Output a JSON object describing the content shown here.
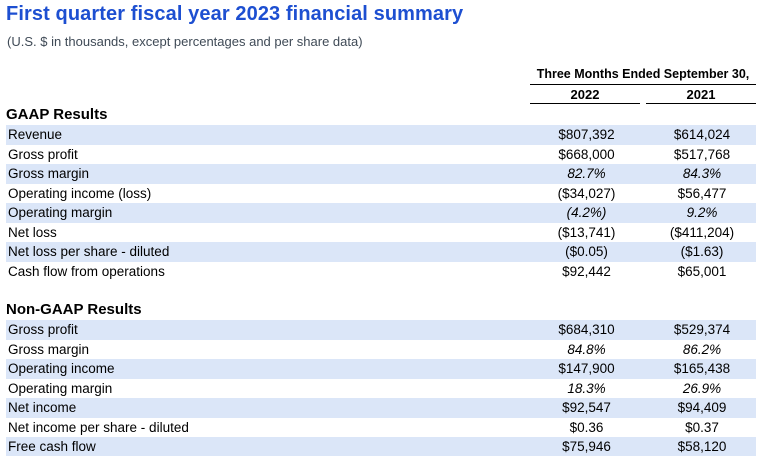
{
  "page": {
    "title": "First quarter fiscal year 2023 financial summary",
    "subtitle": "(U.S. $ in thousands, except percentages and per share data)"
  },
  "table": {
    "period_header": "Three Months Ended September 30,",
    "columns": [
      "2022",
      "2021"
    ],
    "sections": [
      {
        "heading": "GAAP Results",
        "rows": [
          {
            "label": "Revenue",
            "v2022": "$807,392",
            "v2021": "$614,024",
            "italic": false
          },
          {
            "label": "Gross profit",
            "v2022": "$668,000",
            "v2021": "$517,768",
            "italic": false
          },
          {
            "label": "Gross margin",
            "v2022": "82.7%",
            "v2021": "84.3%",
            "italic": true
          },
          {
            "label": "Operating income (loss)",
            "v2022": "($34,027)",
            "v2021": "$56,477",
            "italic": false
          },
          {
            "label": "Operating margin",
            "v2022": "(4.2%)",
            "v2021": "9.2%",
            "italic": true
          },
          {
            "label": "Net loss",
            "v2022": "($13,741)",
            "v2021": "($411,204)",
            "italic": false
          },
          {
            "label": "Net loss per share - diluted",
            "v2022": "($0.05)",
            "v2021": "($1.63)",
            "italic": false
          },
          {
            "label": "Cash flow from operations",
            "v2022": "$92,442",
            "v2021": "$65,001",
            "italic": false
          }
        ]
      },
      {
        "heading": "Non-GAAP Results",
        "rows": [
          {
            "label": "Gross profit",
            "v2022": "$684,310",
            "v2021": "$529,374",
            "italic": false
          },
          {
            "label": "Gross margin",
            "v2022": "84.8%",
            "v2021": "86.2%",
            "italic": true
          },
          {
            "label": "Operating income",
            "v2022": "$147,900",
            "v2021": "$165,438",
            "italic": false
          },
          {
            "label": "Operating margin",
            "v2022": "18.3%",
            "v2021": "26.9%",
            "italic": true
          },
          {
            "label": "Net income",
            "v2022": "$92,547",
            "v2021": "$94,409",
            "italic": false
          },
          {
            "label": "Net income per share - diluted",
            "v2022": "$0.36",
            "v2021": "$0.37",
            "italic": false
          },
          {
            "label": "Free cash flow",
            "v2022": "$75,946",
            "v2021": "$58,120",
            "italic": false
          }
        ]
      }
    ]
  },
  "colors": {
    "title_blue": "#1d4fd1",
    "row_stripe": "#dbe6f8",
    "subtitle_gray": "#3f4a56"
  }
}
